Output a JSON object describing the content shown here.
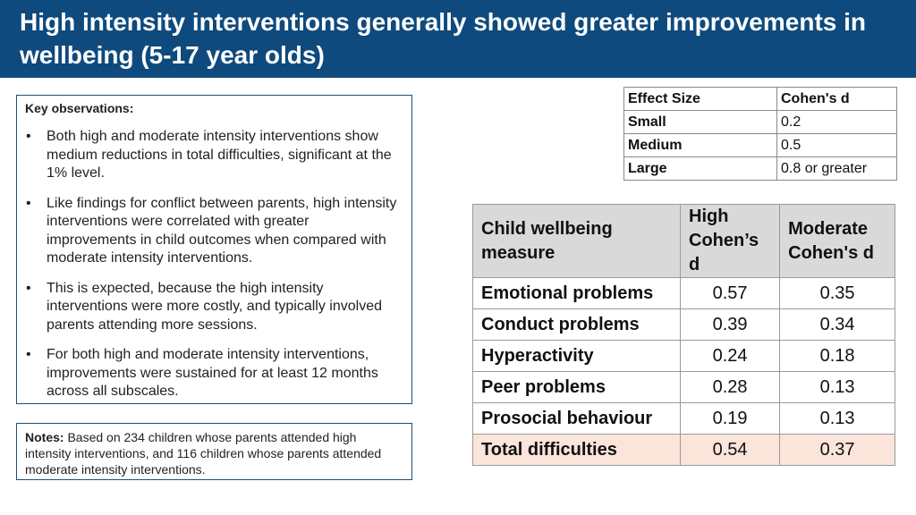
{
  "slide": {
    "title": "High intensity interventions generally showed greater improvements in wellbeing (5-17 year olds)"
  },
  "observations": {
    "heading": "Key observations:",
    "bullets": [
      "Both high and moderate intensity interventions show medium reductions in total difficulties, significant at the 1% level.",
      "Like findings for conflict between parents, high intensity interventions were correlated with greater improvements in child outcomes when compared with moderate intensity interventions.",
      "This is expected, because the high intensity interventions were more costly, and typically involved parents attending more sessions.",
      "For both high and moderate intensity interventions, improvements were sustained for at least 12 months across all subscales."
    ]
  },
  "notes": {
    "label": "Notes:",
    "text": " Based on 234 children whose parents attended high intensity interventions, and 116 children whose parents attended moderate intensity interventions."
  },
  "effect_table": {
    "headers": [
      "Effect Size",
      "Cohen's d"
    ],
    "rows": [
      {
        "label": "Small",
        "value": "0.2"
      },
      {
        "label": "Medium",
        "value": "0.5"
      },
      {
        "label": "Large",
        "value": "0.8 or greater"
      }
    ]
  },
  "wellbeing_table": {
    "headers": [
      "Child wellbeing measure",
      "High Cohen’s d",
      "Moderate Cohen's d"
    ],
    "rows": [
      {
        "measure": "Emotional problems",
        "high": "0.57",
        "moderate": "0.35"
      },
      {
        "measure": "Conduct problems",
        "high": "0.39",
        "moderate": "0.34"
      },
      {
        "measure": "Hyperactivity",
        "high": "0.24",
        "moderate": "0.18"
      },
      {
        "measure": "Peer problems",
        "high": "0.28",
        "moderate": "0.13"
      },
      {
        "measure": "Prosocial behaviour",
        "high": "0.19",
        "moderate": "0.13"
      },
      {
        "measure": "Total difficulties",
        "high": "0.54",
        "moderate": "0.37"
      }
    ],
    "highlight_color": "#fbe4da"
  },
  "colors": {
    "header_bg": "#0e4a7d",
    "box_border": "#1f4e79",
    "table_header_bg": "#d9d9d9"
  }
}
